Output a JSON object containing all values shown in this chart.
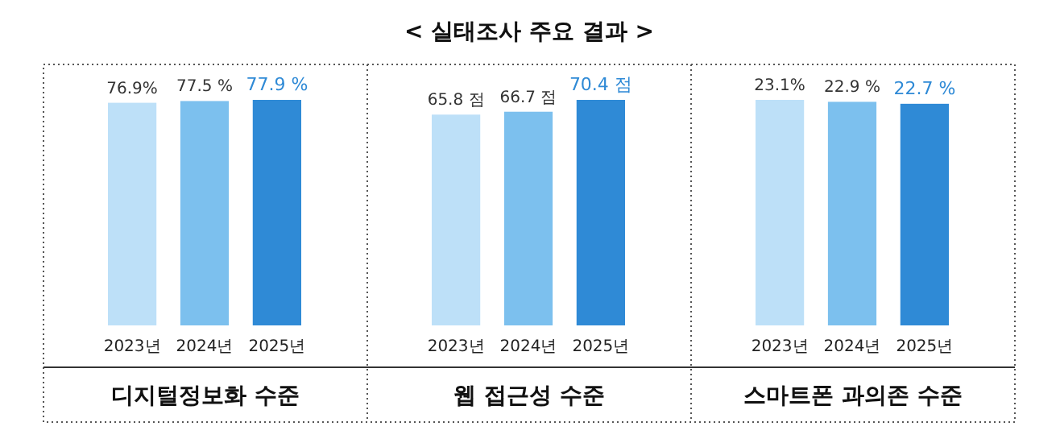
{
  "chart_data": [
    {
      "type": "bar",
      "xlabel": "디지털정보화 수준",
      "categories": [
        "2023년",
        "2024년",
        "2025년"
      ],
      "values": [
        76.9,
        77.5,
        77.9
      ],
      "value_labels": [
        "76.9%",
        "77.5 %",
        "77.9 %"
      ],
      "colors": [
        "#bde0f8",
        "#7cc0ee",
        "#2f8ad6"
      ],
      "tick_labels": "x"
    },
    {
      "type": "bar",
      "title": "< 실태조사 주요 결과 >",
      "xlabel": "웹 접근성 수준",
      "categories": [
        "2023년",
        "2024년",
        "2025년"
      ],
      "values": [
        65.8,
        66.7,
        70.4
      ],
      "value_labels": [
        "65.8 점",
        "66.7 점",
        "70.4 점"
      ],
      "colors": [
        "#bde0f8",
        "#7cc0ee",
        "#2f8ad6"
      ],
      "tick_labels": "x"
    },
    {
      "type": "bar",
      "xlabel": "스마트폰 과의존 수준",
      "categories": [
        "2023년",
        "2024년",
        "2025년"
      ],
      "values": [
        23.1,
        22.9,
        22.7
      ],
      "value_labels": [
        "23.1%",
        "22.9 %",
        "22.7 %"
      ],
      "colors": [
        "#bde0f8",
        "#7cc0ee",
        "#2f8ad6"
      ],
      "tick_labels": "x"
    }
  ]
}
